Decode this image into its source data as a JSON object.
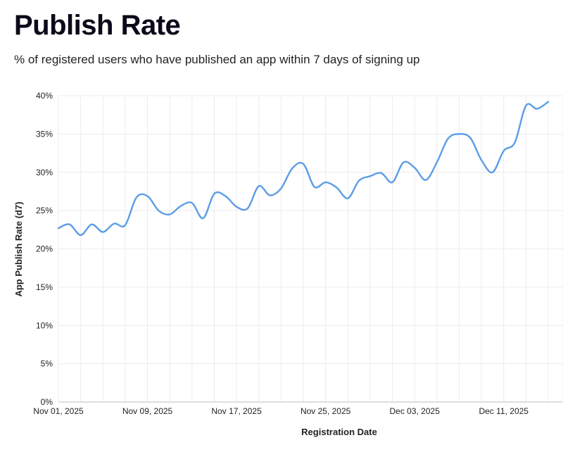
{
  "header": {
    "title": "Publish Rate",
    "subtitle": "% of registered users who have published an app within 7 days of signing up"
  },
  "colors": {
    "line": "#5b9de6",
    "grid": "#ececec",
    "axis": "#bdbdbd"
  },
  "chart_data": {
    "type": "line",
    "title": "Publish Rate",
    "xlabel": "Registration Date",
    "ylabel": "App Publish Rate (d7)",
    "ylim": [
      0,
      40
    ],
    "yticks": [
      "0%",
      "5%",
      "10%",
      "15%",
      "20%",
      "25%",
      "30%",
      "35%",
      "40%"
    ],
    "xticks": [
      "Nov 01, 2025",
      "Nov 09, 2025",
      "Nov 17, 2025",
      "Nov 25, 2025",
      "Dec 03, 2025",
      "Dec 11, 2025"
    ],
    "series": [
      {
        "name": "App Publish Rate (d7)",
        "x": [
          "Nov 01",
          "Nov 02",
          "Nov 03",
          "Nov 04",
          "Nov 05",
          "Nov 06",
          "Nov 07",
          "Nov 08",
          "Nov 09",
          "Nov 10",
          "Nov 11",
          "Nov 12",
          "Nov 13",
          "Nov 14",
          "Nov 15",
          "Nov 16",
          "Nov 17",
          "Nov 18",
          "Nov 19",
          "Nov 20",
          "Nov 21",
          "Nov 22",
          "Nov 23",
          "Nov 24",
          "Nov 25",
          "Nov 26",
          "Nov 27",
          "Nov 28",
          "Nov 29",
          "Nov 30",
          "Dec 01",
          "Dec 02",
          "Dec 03",
          "Dec 04",
          "Dec 05",
          "Dec 06",
          "Dec 07",
          "Dec 08",
          "Dec 09",
          "Dec 10",
          "Dec 11",
          "Dec 12",
          "Dec 13",
          "Dec 14",
          "Dec 15"
        ],
        "values": [
          22.7,
          23.2,
          21.8,
          23.2,
          22.2,
          23.3,
          23.1,
          26.7,
          26.9,
          25.0,
          24.5,
          25.6,
          26.0,
          24.0,
          27.2,
          26.9,
          25.5,
          25.3,
          28.2,
          27.0,
          27.9,
          30.5,
          31.1,
          28.1,
          28.7,
          28.0,
          26.6,
          28.9,
          29.5,
          29.9,
          28.7,
          31.3,
          30.6,
          29.0,
          31.3,
          34.4,
          35.0,
          34.5,
          31.6,
          30.0,
          32.8,
          33.9,
          38.7,
          38.3,
          39.2
        ]
      }
    ]
  }
}
